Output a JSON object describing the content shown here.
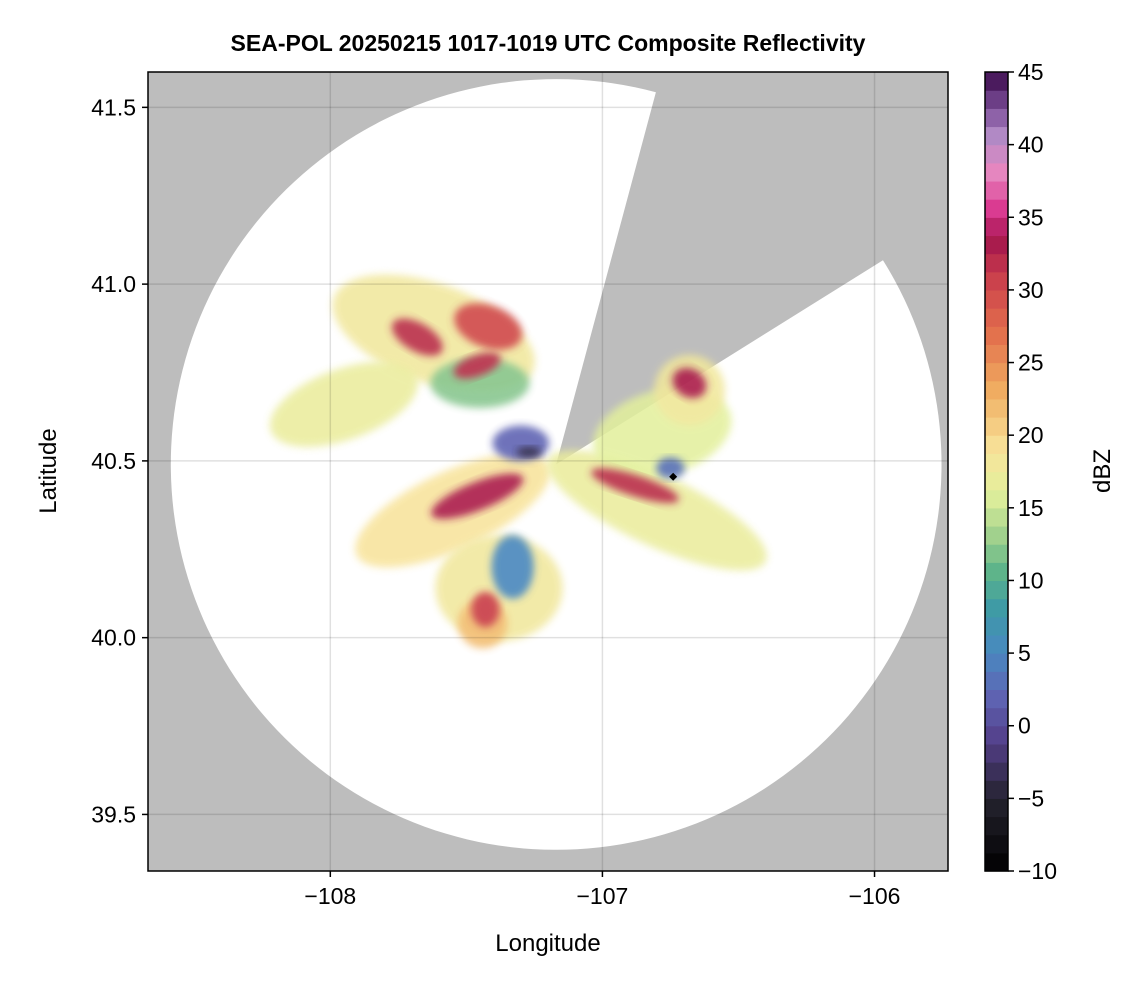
{
  "chart_data": {
    "type": "heatmap",
    "title": "SEA-POL 20250215 1017-1019 UTC Composite Reflectivity",
    "xlabel": "Longitude",
    "ylabel": "Latitude",
    "xlim": [
      -108.67,
      -105.73
    ],
    "ylim": [
      39.34,
      41.6
    ],
    "xticks": [
      -108,
      -107,
      -106
    ],
    "xtick_labels": [
      "−108",
      "−107",
      "−106"
    ],
    "yticks": [
      39.5,
      40.0,
      40.5,
      41.0,
      41.5
    ],
    "ytick_labels": [
      "39.5",
      "40.0",
      "40.5",
      "41.0",
      "41.5"
    ],
    "grid": true,
    "background_color": "#bdbdbd",
    "radar": {
      "center_lon": -107.17,
      "center_lat": 40.49,
      "range_lat_extent": 1.09,
      "blocked_sector_azimuth_deg": [
        15,
        58
      ]
    },
    "marker": {
      "lon": -106.74,
      "lat": 40.455,
      "shape": "diamond",
      "color": "#000000"
    },
    "colorbar": {
      "label": "dBZ",
      "min": -10,
      "max": 45,
      "step": 1.25,
      "ticks": [
        -10,
        -5,
        0,
        5,
        10,
        15,
        20,
        25,
        30,
        35,
        40,
        45
      ],
      "tick_labels": [
        "−10",
        "−5",
        "0",
        "5",
        "10",
        "15",
        "20",
        "25",
        "30",
        "35",
        "40",
        "45"
      ],
      "colormap_stops": [
        [
          "#000000",
          -10
        ],
        [
          "#25232f",
          -5
        ],
        [
          "#543f8a",
          -1
        ],
        [
          "#5e63b3",
          2
        ],
        [
          "#4a88c0",
          5
        ],
        [
          "#3d9aa6",
          8
        ],
        [
          "#5bb38a",
          10.5
        ],
        [
          "#9ed08c",
          13
        ],
        [
          "#e3f09c",
          16
        ],
        [
          "#f8e39a",
          19
        ],
        [
          "#f0ae62",
          23
        ],
        [
          "#e3704c",
          27
        ],
        [
          "#c93d4c",
          31
        ],
        [
          "#a3164d",
          33.5
        ],
        [
          "#d9378f",
          35.5
        ],
        [
          "#e886bf",
          38
        ],
        [
          "#b48dc8",
          40.5
        ],
        [
          "#7c4f9a",
          42.5
        ],
        [
          "#3a0a4a",
          45
        ]
      ]
    },
    "echo_regions": [
      {
        "lon": -107.62,
        "lat": 40.86,
        "rx": 0.3,
        "ry": 0.14,
        "rot": 20,
        "dbz": 18
      },
      {
        "lon": -107.95,
        "lat": 40.66,
        "rx": 0.22,
        "ry": 0.1,
        "rot": -20,
        "dbz": 17
      },
      {
        "lon": -107.45,
        "lat": 40.72,
        "rx": 0.14,
        "ry": 0.07,
        "rot": 0,
        "dbz": 12
      },
      {
        "lon": -107.55,
        "lat": 40.36,
        "rx": 0.3,
        "ry": 0.11,
        "rot": -25,
        "dbz": 19
      },
      {
        "lon": -107.38,
        "lat": 40.14,
        "rx": 0.18,
        "ry": 0.15,
        "rot": 0,
        "dbz": 18
      },
      {
        "lon": -107.44,
        "lat": 40.04,
        "rx": 0.07,
        "ry": 0.07,
        "rot": 0,
        "dbz": 22
      },
      {
        "lon": -106.8,
        "lat": 40.36,
        "rx": 0.34,
        "ry": 0.1,
        "rot": 25,
        "dbz": 17
      },
      {
        "lon": -106.78,
        "lat": 40.58,
        "rx": 0.2,
        "ry": 0.12,
        "rot": -15,
        "dbz": 16
      },
      {
        "lon": -106.68,
        "lat": 40.7,
        "rx": 0.1,
        "ry": 0.1,
        "rot": 0,
        "dbz": 18
      },
      {
        "lon": -107.42,
        "lat": 40.88,
        "rx": 0.1,
        "ry": 0.06,
        "rot": 20,
        "dbz": 30
      },
      {
        "lon": -107.68,
        "lat": 40.85,
        "rx": 0.08,
        "ry": 0.04,
        "rot": 30,
        "dbz": 32
      },
      {
        "lon": -107.46,
        "lat": 40.77,
        "rx": 0.07,
        "ry": 0.03,
        "rot": -20,
        "dbz": 32
      },
      {
        "lon": -107.46,
        "lat": 40.4,
        "rx": 0.14,
        "ry": 0.04,
        "rot": -22,
        "dbz": 33
      },
      {
        "lon": -106.88,
        "lat": 40.43,
        "rx": 0.13,
        "ry": 0.03,
        "rot": 18,
        "dbz": 32
      },
      {
        "lon": -106.68,
        "lat": 40.72,
        "rx": 0.05,
        "ry": 0.04,
        "rot": 30,
        "dbz": 33
      },
      {
        "lon": -107.43,
        "lat": 40.08,
        "rx": 0.04,
        "ry": 0.05,
        "rot": 0,
        "dbz": 31
      },
      {
        "lon": -107.3,
        "lat": 40.55,
        "rx": 0.08,
        "ry": 0.05,
        "rot": 0,
        "dbz": 2
      },
      {
        "lon": -107.33,
        "lat": 40.2,
        "rx": 0.06,
        "ry": 0.09,
        "rot": 0,
        "dbz": 5
      },
      {
        "lon": -106.75,
        "lat": 40.48,
        "rx": 0.04,
        "ry": 0.03,
        "rot": 0,
        "dbz": 3
      },
      {
        "lon": -107.27,
        "lat": 40.525,
        "rx": 0.035,
        "ry": 0.015,
        "rot": 0,
        "dbz": -4
      }
    ]
  }
}
